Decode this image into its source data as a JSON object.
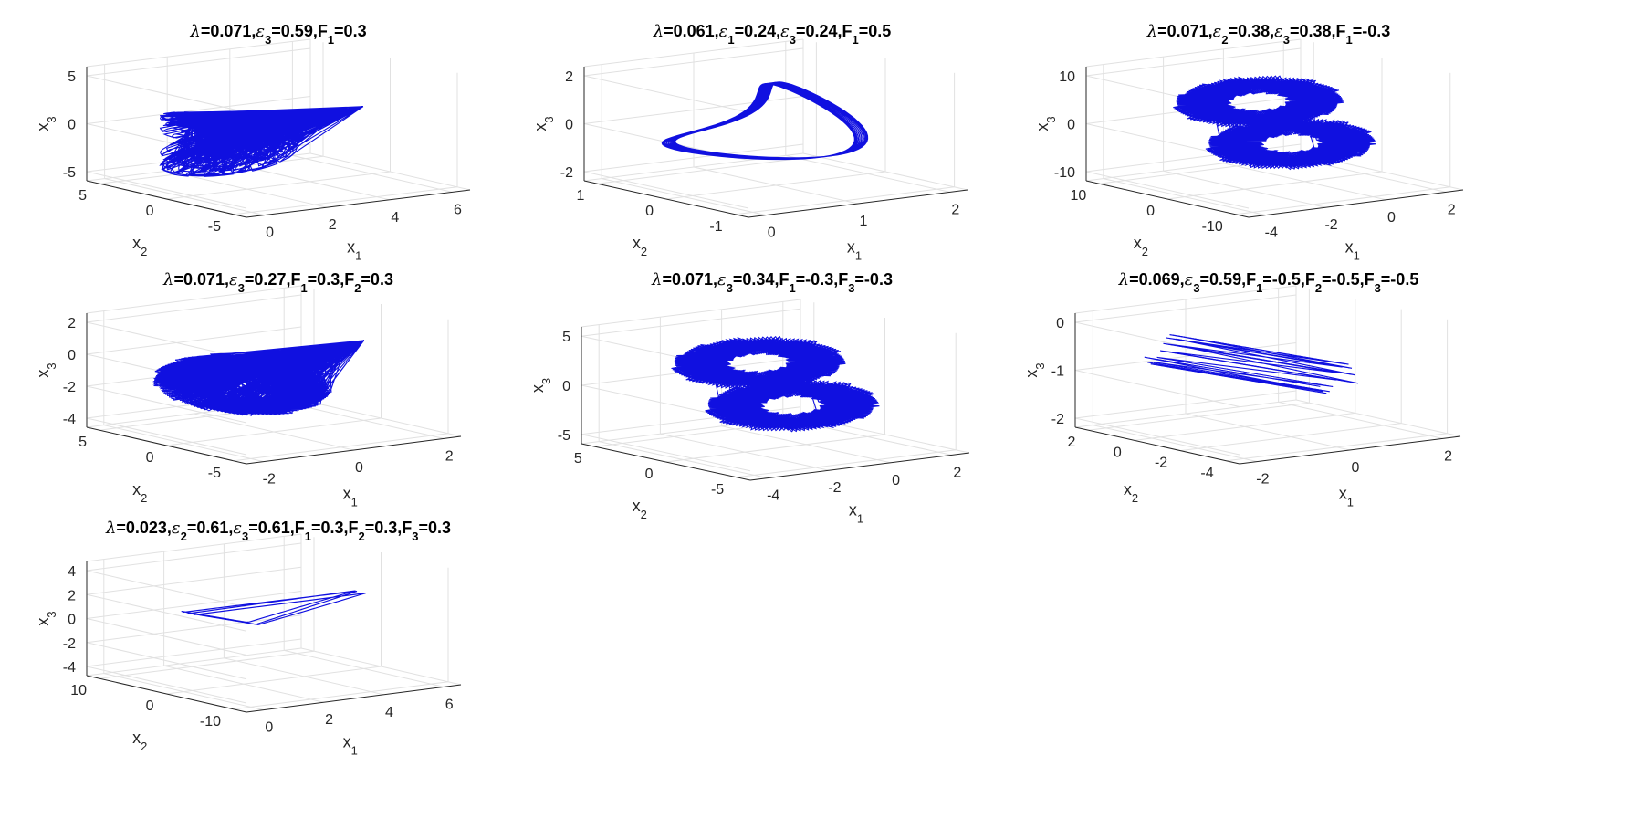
{
  "colors": {
    "trajectory": "#0000ff",
    "axis": "#262626",
    "grid": "#e1e1e1"
  },
  "chart_data": [
    {
      "type": "line3d",
      "title": "λ=0.071,ε₃=0.59,F₁=0.3",
      "xlabel": "x₁",
      "ylabel": "x₂",
      "zlabel": "x₃",
      "x_ticks": [
        "0",
        "2",
        "4",
        "6"
      ],
      "y_ticks": [
        "5",
        "0",
        "-5"
      ],
      "z_ticks": [
        "5",
        "0",
        "-5"
      ],
      "xlim": [
        -1,
        6
      ],
      "ylim": [
        -6,
        6
      ],
      "zlim": [
        -6,
        6
      ],
      "grid": true
    },
    {
      "type": "line3d",
      "title": "λ=0.061,ε₁=0.24,ε₃=0.24,F₁=0.5",
      "xlabel": "x₁",
      "ylabel": "x₂",
      "zlabel": "x₃",
      "x_ticks": [
        "0",
        "1",
        "2"
      ],
      "y_ticks": [
        "1",
        "0",
        "-1"
      ],
      "z_ticks": [
        "2",
        "0",
        "-2"
      ],
      "xlim": [
        0,
        2
      ],
      "ylim": [
        -1.5,
        1
      ],
      "zlim": [
        -2,
        2
      ],
      "grid": true
    },
    {
      "type": "line3d",
      "title": "λ=0.071,ε₂=0.38,ε₃=0.38,F₁=-0.3",
      "xlabel": "x₁",
      "ylabel": "x₂",
      "zlabel": "x₃",
      "x_ticks": [
        "-4",
        "-2",
        "0",
        "2"
      ],
      "y_ticks": [
        "10",
        "0",
        "-10"
      ],
      "z_ticks": [
        "10",
        "0",
        "-10"
      ],
      "xlim": [
        -4,
        2
      ],
      "ylim": [
        -10,
        10
      ],
      "zlim": [
        -10,
        10
      ],
      "grid": true
    },
    {
      "type": "line3d",
      "title": "λ=0.071,ε₃=0.27,F₁=0.3,F₂=0.3",
      "xlabel": "x₁",
      "ylabel": "x₂",
      "zlabel": "x₃",
      "x_ticks": [
        "-2",
        "0",
        "2"
      ],
      "y_ticks": [
        "5",
        "0",
        "-5"
      ],
      "z_ticks": [
        "2",
        "0",
        "-2",
        "-4"
      ],
      "xlim": [
        -3,
        3
      ],
      "ylim": [
        -7,
        7
      ],
      "zlim": [
        -5,
        3
      ],
      "grid": true
    },
    {
      "type": "line3d",
      "title": "λ=0.071,ε₃=0.34,F₁=-0.3,F₃=-0.3",
      "xlabel": "x₁",
      "ylabel": "x₂",
      "zlabel": "x₃",
      "x_ticks": [
        "-4",
        "-2",
        "0",
        "2"
      ],
      "y_ticks": [
        "5",
        "0",
        "-5"
      ],
      "z_ticks": [
        "5",
        "0",
        "-5"
      ],
      "xlim": [
        -4,
        2
      ],
      "ylim": [
        -5,
        5
      ],
      "zlim": [
        -5,
        5
      ],
      "grid": true
    },
    {
      "type": "line3d",
      "title": "λ=0.069,ε₃=0.59,F₁=-0.5,F₂=-0.5,F₃=-0.5",
      "xlabel": "x₁",
      "ylabel": "x₂",
      "zlabel": "x₃",
      "x_ticks": [
        "-2",
        "0",
        "2"
      ],
      "y_ticks": [
        "2",
        "0",
        "-2",
        "-4"
      ],
      "z_ticks": [
        "0",
        "-1",
        "-2"
      ],
      "xlim": [
        -3,
        3
      ],
      "ylim": [
        -5,
        3
      ],
      "zlim": [
        -3,
        1
      ],
      "grid": true
    },
    {
      "type": "line3d",
      "title": "λ=0.023,ε₂=0.61,ε₃=0.61,F₁=0.3,F₂=0.3,F₃=0.3",
      "xlabel": "x₁",
      "ylabel": "x₂",
      "zlabel": "x₃",
      "x_ticks": [
        "0",
        "2",
        "4",
        "6"
      ],
      "y_ticks": [
        "10",
        "0",
        "-10"
      ],
      "z_ticks": [
        "4",
        "2",
        "0",
        "-2",
        "-4"
      ],
      "xlim": [
        -1,
        7
      ],
      "ylim": [
        -12,
        12
      ],
      "zlim": [
        -4.5,
        4.5
      ],
      "grid": true
    }
  ]
}
